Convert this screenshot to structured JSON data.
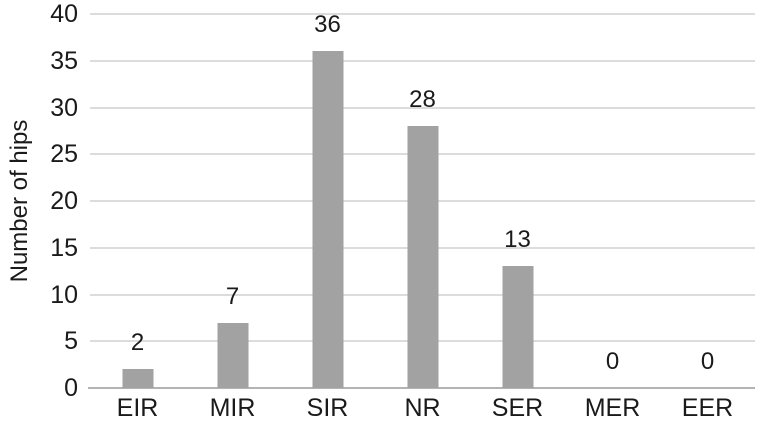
{
  "chart_data": {
    "type": "bar",
    "title": "",
    "categories": [
      "EIR",
      "MIR",
      "SIR",
      "NR",
      "SER",
      "MER",
      "EER"
    ],
    "values": [
      2,
      7,
      36,
      28,
      13,
      0,
      0
    ],
    "data_labels": [
      "2",
      "7",
      "36",
      "28",
      "13",
      "0",
      "0"
    ],
    "xlabel": "",
    "ylabel": "Number of hips",
    "ylim": [
      0,
      40
    ],
    "yticks": [
      0,
      5,
      10,
      15,
      20,
      25,
      30,
      35,
      40
    ],
    "grid": "horizontal",
    "legend": "none",
    "colors": {
      "bar": "#a2a2a2",
      "gridline": "#dcdcdc",
      "axis_line": "#b3b3b3",
      "text": "#1a1a1a",
      "background": "#ffffff"
    }
  }
}
